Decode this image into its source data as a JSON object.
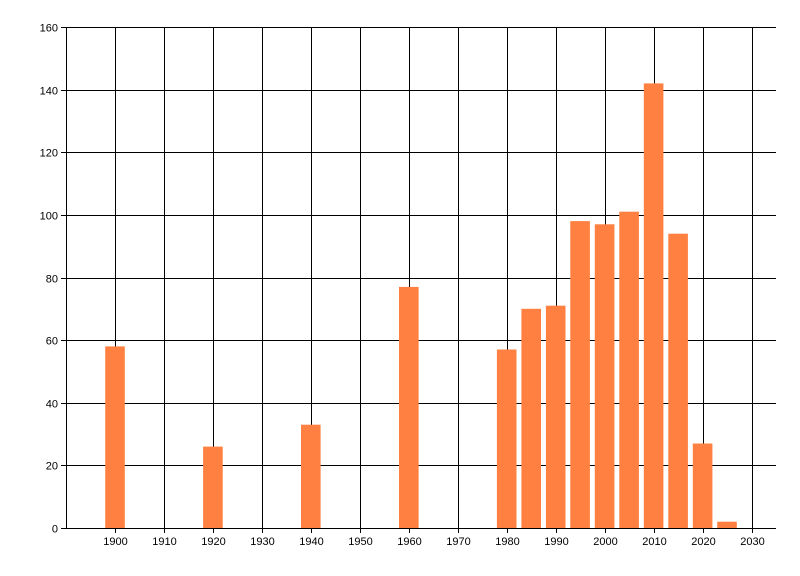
{
  "chart_data": {
    "type": "bar",
    "title": "",
    "xlabel": "",
    "ylabel": "",
    "x": [
      1900,
      1920,
      1940,
      1960,
      1980,
      1985,
      1990,
      1995,
      2000,
      2005,
      2010,
      2015,
      2020,
      2025
    ],
    "values": [
      58,
      26,
      33,
      77,
      57,
      70,
      71,
      98,
      97,
      101,
      142,
      94,
      27,
      2
    ],
    "xlim": [
      1890,
      2035
    ],
    "ylim": [
      0,
      160
    ],
    "x_ticks": [
      1900,
      1910,
      1920,
      1930,
      1940,
      1950,
      1960,
      1970,
      1980,
      1990,
      2000,
      2010,
      2020,
      2030
    ],
    "y_ticks": [
      0,
      20,
      40,
      60,
      80,
      100,
      120,
      140,
      160
    ],
    "grid": true,
    "legend": "none",
    "bar_color": "#FF8040"
  }
}
